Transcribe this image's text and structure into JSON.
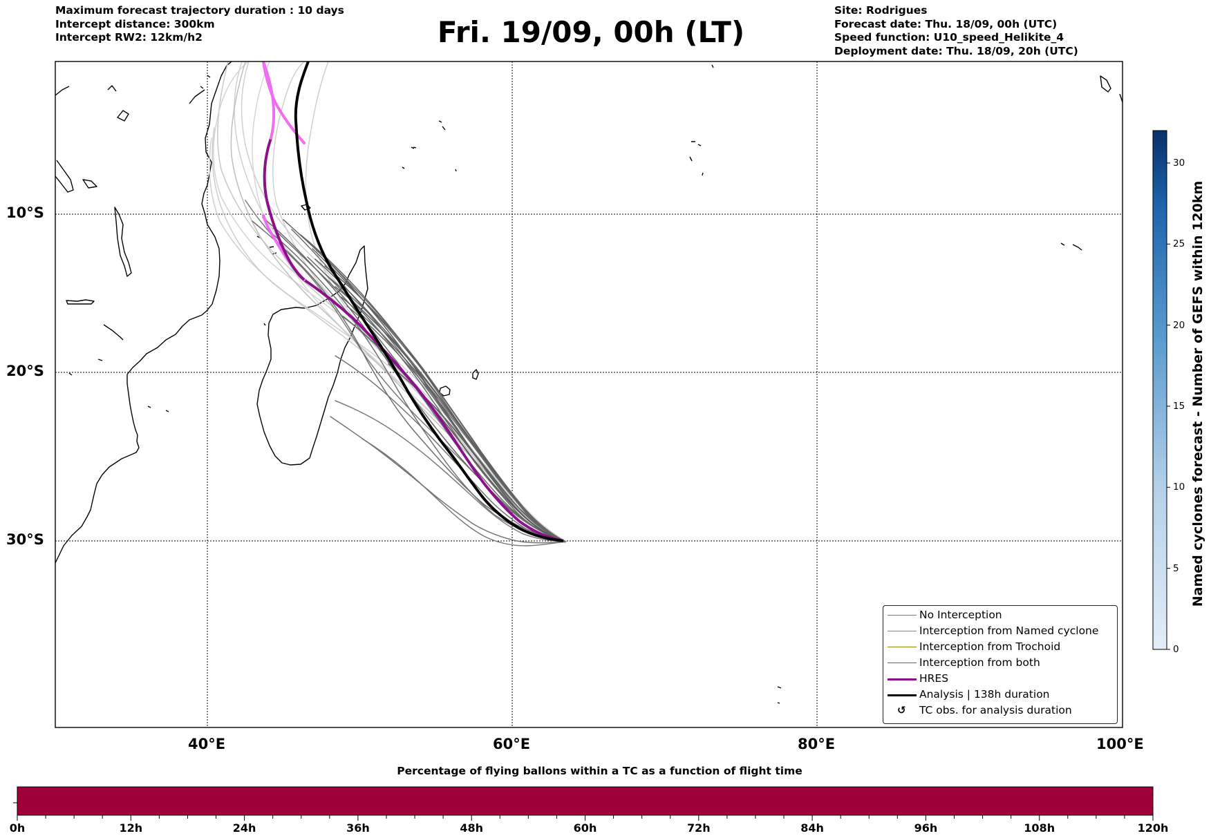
{
  "header": {
    "left": [
      "Maximum forecast trajectory duration : 10 days",
      "Intercept distance: 300km",
      "Intercept RW2: 12km/h2"
    ],
    "title": "Fri. 19/09, 00h (LT)",
    "right": [
      "Site: Rodrigues",
      "Forecast date: Thu. 18/09, 00h (UTC)",
      "Speed function: U10_speed_Helikite_4",
      "Deployment date: Thu. 18/09, 20h (UTC)"
    ]
  },
  "map": {
    "lon_labels": [
      "40°E",
      "60°E",
      "80°E",
      "100°E"
    ],
    "lat_labels": [
      "10°S",
      "20°S",
      "30°S"
    ],
    "lon_values": [
      40,
      60,
      80,
      100
    ],
    "lat_values": [
      -10,
      -20,
      -30
    ]
  },
  "legend": [
    {
      "label": "No Interception",
      "color": "#777777",
      "width": 1.5,
      "kind": "line"
    },
    {
      "label": "Interception from Named cyclone",
      "color": "#ff5a1e",
      "width": 1.5,
      "kind": "line"
    },
    {
      "label": "Interception from Trochoid",
      "color": "#8a8a00",
      "width": 1.5,
      "kind": "line"
    },
    {
      "label": "Interception from both",
      "color": "#129612",
      "width": 1.5,
      "kind": "line"
    },
    {
      "label": "HRES",
      "color": "#8c0f8c",
      "width": 3.5,
      "kind": "line"
    },
    {
      "label": "Analysis | 138h duration",
      "color": "#000000",
      "width": 3.5,
      "kind": "line"
    },
    {
      "label": "TC obs. for analysis duration",
      "symbol": "↺",
      "kind": "symbol"
    }
  ],
  "colorbar": {
    "label": "Named cyclones forecast - Number of GEFS within 120km",
    "ticks": [
      "0",
      "5",
      "10",
      "15",
      "20",
      "25",
      "30"
    ],
    "tick_values": [
      0,
      5,
      10,
      15,
      20,
      25,
      30
    ],
    "max": 32,
    "color_low": "#e3edf8",
    "color_high": "#08306b"
  },
  "bottom_bar": {
    "title": "Percentage of flying ballons within a TC as a function of flight time",
    "ticks": [
      "0h",
      "12h",
      "24h",
      "36h",
      "48h",
      "60h",
      "72h",
      "84h",
      "96h",
      "108h",
      "120h"
    ],
    "tick_values": [
      0,
      12,
      24,
      36,
      48,
      60,
      72,
      84,
      96,
      108,
      120
    ],
    "color": "#9e003a"
  }
}
